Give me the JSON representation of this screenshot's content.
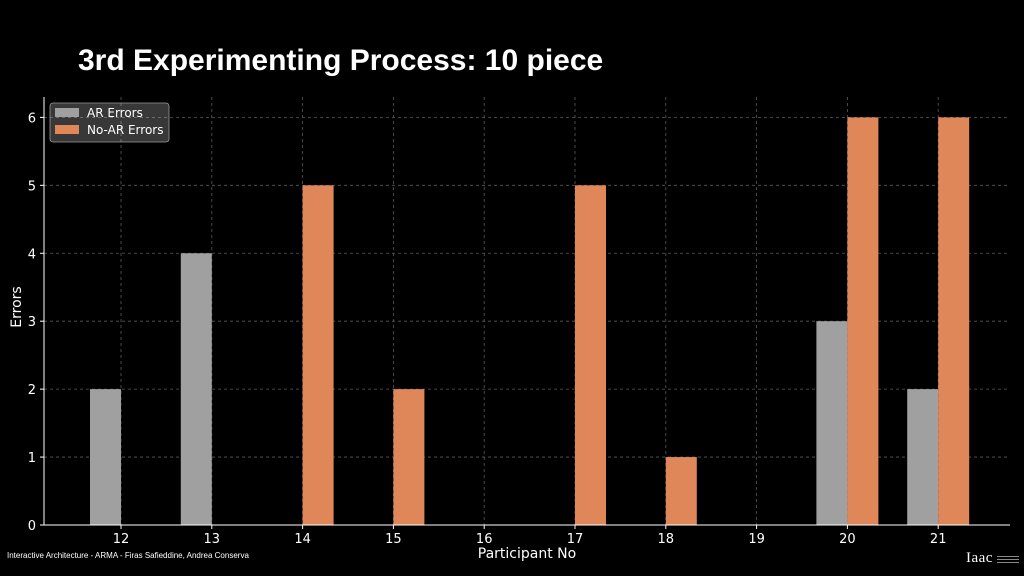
{
  "slide": {
    "title": "3rd Experimenting Process: 10 piece",
    "footer": "Interactive Architecture - ARMA - Firas Safieddine, Andrea Conserva",
    "logo_text": "Iaac"
  },
  "colors": {
    "background": "#000000",
    "ar_series": "#a0a0a0",
    "no_ar_series": "#e0875a",
    "grid": "#5a5a5a",
    "axis": "#ffffff"
  },
  "chart_data": {
    "type": "bar",
    "title": "",
    "xlabel": "Participant No",
    "ylabel": "Errors",
    "categories": [
      "12",
      "13",
      "14",
      "15",
      "16",
      "17",
      "18",
      "19",
      "20",
      "21"
    ],
    "series": [
      {
        "name": "AR Errors",
        "values": [
          2,
          4,
          0,
          0,
          0,
          0,
          0,
          0,
          3,
          2
        ]
      },
      {
        "name": "No-AR Errors",
        "values": [
          0,
          0,
          5,
          2,
          0,
          5,
          1,
          0,
          6,
          6
        ]
      }
    ],
    "yticks": [
      0,
      1,
      2,
      3,
      4,
      5,
      6
    ],
    "ylim": [
      0,
      6.3
    ],
    "grid": true,
    "legend_position": "top-left"
  }
}
